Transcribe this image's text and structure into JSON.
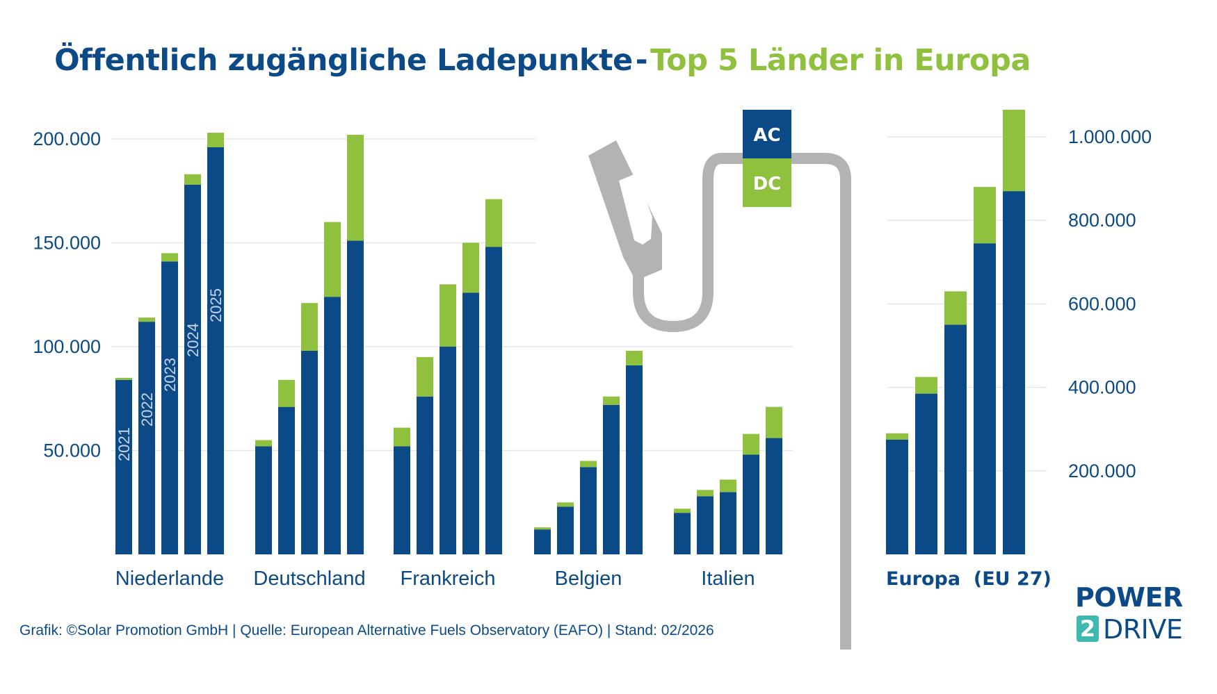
{
  "title": {
    "part1": "Öffentlich zugängliche Ladepunkte",
    "dash": "-",
    "part2": "Top 5 Länder in Europa"
  },
  "footer": {
    "source": "Grafik: ©Solar Promotion GmbH | Quelle: European Alternative Fuels Observatory (EAFO) | Stand: 02/2026"
  },
  "logo": {
    "line1": "POWER",
    "two": "2",
    "line2": "DRIVE"
  },
  "colors": {
    "ac": "#0b4a86",
    "dc": "#8fc13e",
    "plug": "#b3b3b3",
    "grid": "#e6e6e6",
    "text": "#0b4a86"
  },
  "legend": {
    "ac": "AC",
    "dc": "DC"
  },
  "chart_data": [
    {
      "type": "bar",
      "stacked": true,
      "title": "Öffentlich zugängliche Ladepunkte - Top 5 Länder in Europa",
      "xlabel": "",
      "ylabel": "",
      "ylim": [
        0,
        200000
      ],
      "yticks": [
        50000,
        100000,
        150000,
        200000
      ],
      "ytick_labels": [
        "50.000",
        "100.000",
        "150.000",
        "200.000"
      ],
      "grid": true,
      "year_labels": [
        "2021",
        "2022",
        "2023",
        "2024",
        "2025"
      ],
      "groups": [
        {
          "name": "Niederlande",
          "ac": [
            84000,
            112000,
            141000,
            178000,
            196000
          ],
          "dc": [
            1000,
            2000,
            4000,
            5000,
            7000
          ]
        },
        {
          "name": "Deutschland",
          "ac": [
            52000,
            71000,
            98000,
            124000,
            151000
          ],
          "dc": [
            3000,
            13000,
            23000,
            36000,
            51000
          ]
        },
        {
          "name": "Frankreich",
          "ac": [
            52000,
            76000,
            100000,
            126000,
            148000
          ],
          "dc": [
            9000,
            19000,
            30000,
            24000,
            23000
          ]
        },
        {
          "name": "Belgien",
          "ac": [
            12000,
            23000,
            42000,
            72000,
            91000
          ],
          "dc": [
            1000,
            2000,
            3000,
            4000,
            7000
          ]
        },
        {
          "name": "Italien",
          "ac": [
            20000,
            28000,
            30000,
            48000,
            56000
          ],
          "dc": [
            2000,
            3000,
            6000,
            10000,
            15000
          ]
        }
      ]
    },
    {
      "type": "bar",
      "stacked": true,
      "title": "Europa (EU 27)",
      "ylim": [
        0,
        1060000
      ],
      "yticks": [
        200000,
        400000,
        600000,
        800000,
        1000000
      ],
      "ytick_labels": [
        "200.000",
        "400.000",
        "600.000",
        "800.000",
        "1.000.000"
      ],
      "grid": true,
      "groups": [
        {
          "name": "Europa  (EU 27)",
          "ac": [
            275000,
            385000,
            550000,
            745000,
            870000
          ],
          "dc": [
            15000,
            40000,
            80000,
            135000,
            195000
          ]
        }
      ]
    }
  ]
}
